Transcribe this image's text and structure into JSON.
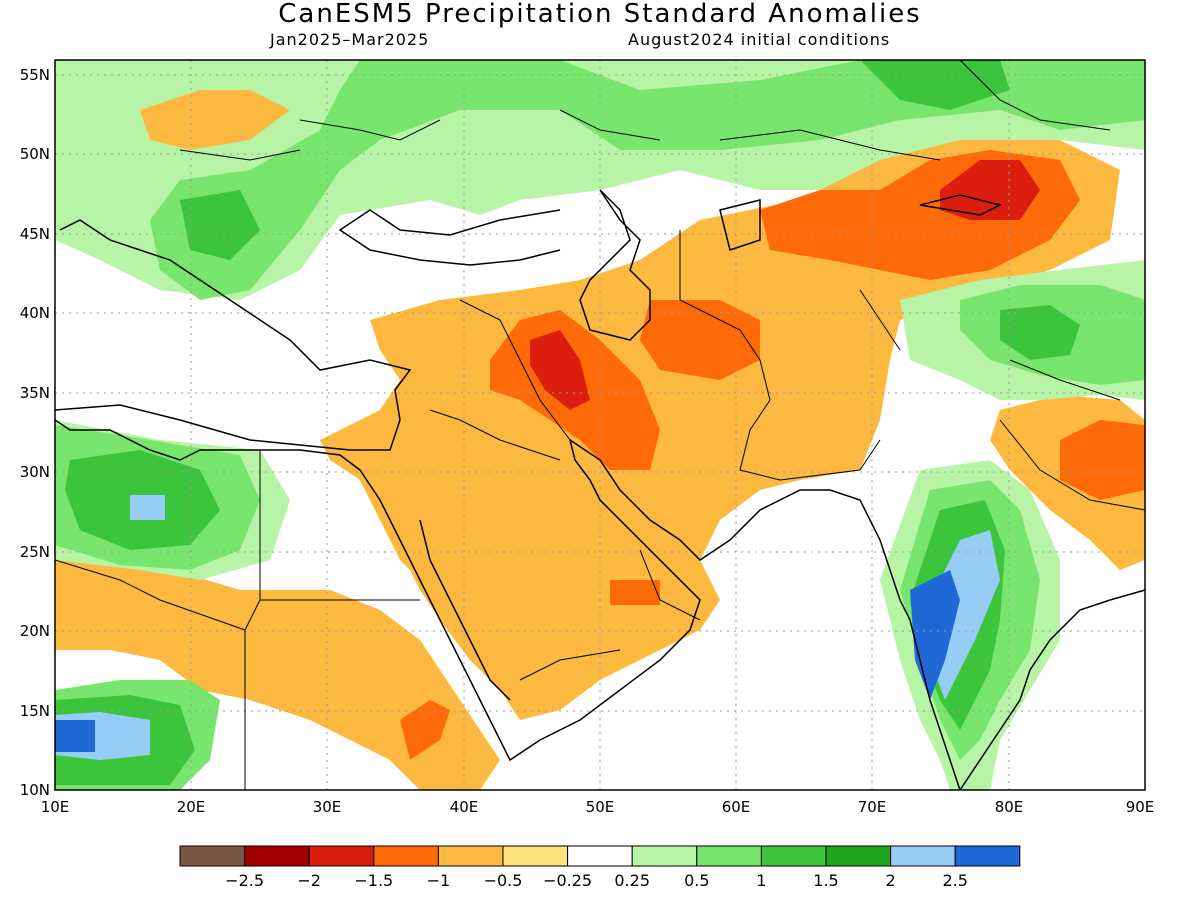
{
  "title": "CanESM5 Precipitation Standard Anomalies",
  "subtitle_left": "Jan2025–Mar2025",
  "subtitle_right": "August2024 initial conditions",
  "lat_labels": [
    "55N",
    "50N",
    "45N",
    "40N",
    "35N",
    "30N",
    "25N",
    "20N",
    "15N",
    "10N"
  ],
  "lon_labels": [
    "10E",
    "20E",
    "30E",
    "40E",
    "50E",
    "60E",
    "70E",
    "80E",
    "90E"
  ],
  "colorbar": {
    "colors": [
      "#7b5545",
      "#a00000",
      "#dc1e0f",
      "#ff6a08",
      "#fcb83f",
      "#fde17a",
      "#ffffff",
      "#b8f4a6",
      "#78e66c",
      "#3cc43c",
      "#1ea51e",
      "#96cdf5",
      "#1f68d6"
    ],
    "labels": [
      "−2.5",
      "−2",
      "−1.5",
      "−1",
      "−0.5",
      "−0.25",
      "0.25",
      "0.5",
      "1",
      "1.5",
      "2",
      "2.5"
    ]
  },
  "map_colors": {
    "frame": "#000000",
    "coast": "#000000",
    "grid": "#9a9a9a"
  }
}
